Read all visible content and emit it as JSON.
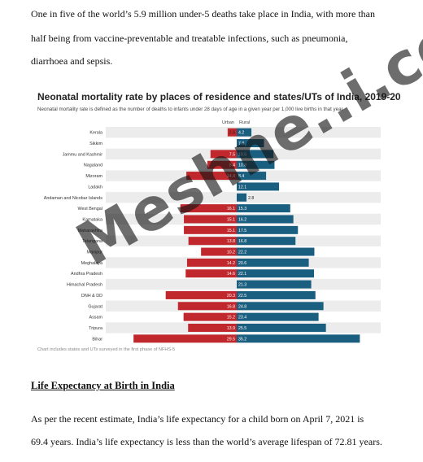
{
  "document": {
    "para1": "One in five of the world’s 5.9 million under-5 deaths take place in India, with more than",
    "para2": "half being from vaccine-preventable and treatable infections, such as pneumonia,",
    "para3": "diarrhoea and sepsis.",
    "heading": "Life Expectancy at Birth in India",
    "para4": "As per the recent estimate, India’s life expectancy for a child born on April 7, 2021 is",
    "para5": "69.4 years. India’s life expectancy is less than the world’s average lifespan of 72.81 years.",
    "watermark": "Meshne..i.com"
  },
  "chart_data": {
    "type": "bar",
    "title": "Neonatal mortality rate by places of residence and states/UTs of India, 2019-20",
    "subtitle": "Neonatal mortality rate is defined as the number of deaths to infants under 28 days of age in a given year per 1,000 live births in that year",
    "note": "Chart includes states and UTs surveyed in the first phase of NFHS-5",
    "categories": [
      "Kerala",
      "Sikkim",
      "Jammu and Kashmir",
      "Nagaland",
      "Mizoram",
      "Ladakh",
      "Andaman and Nicobar Islands",
      "West Bengal",
      "Karnataka",
      "Maharashtra",
      "Telangana",
      "Manipur",
      "Meghalaya",
      "Andhra Pradesh",
      "Himachal Pradesh",
      "DNH & DD",
      "Gujarat",
      "Assam",
      "Tripura",
      "Bihar"
    ],
    "series": [
      {
        "name": "Urban",
        "color": "#c0282d",
        "values": [
          2.6,
          null,
          7.5,
          8.4,
          14.4,
          null,
          null,
          16.1,
          15.1,
          15.1,
          13.8,
          10.2,
          14.2,
          14.6,
          null,
          20.3,
          16.8,
          15.2,
          13.9,
          29.5
        ]
      },
      {
        "name": "Rural",
        "color": "#1b5f80",
        "values": [
          4.2,
          7.8,
          10.5,
          10.8,
          8.4,
          12.1,
          2.8,
          15.3,
          16.2,
          17.5,
          16.8,
          22.2,
          20.6,
          22.1,
          21.3,
          22.5,
          24.8,
          23.4,
          25.5,
          35.2
        ]
      }
    ]
  }
}
